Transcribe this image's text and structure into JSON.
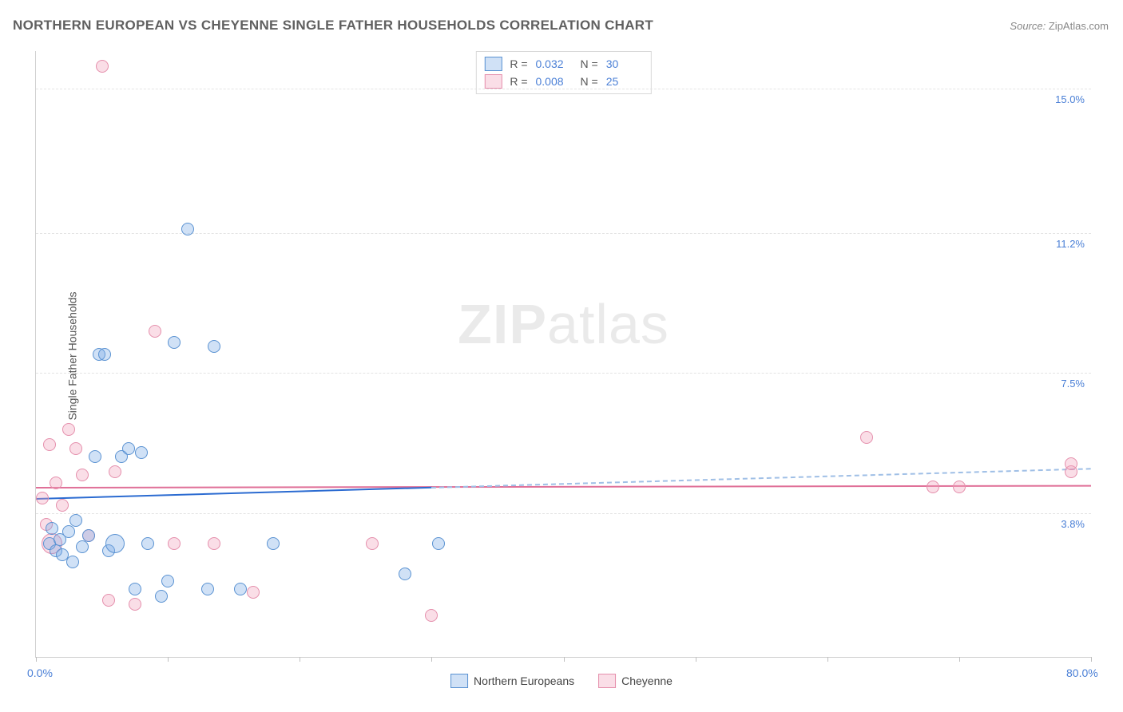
{
  "title": "NORTHERN EUROPEAN VS CHEYENNE SINGLE FATHER HOUSEHOLDS CORRELATION CHART",
  "source_label": "Source:",
  "source_value": "ZipAtlas.com",
  "ylabel": "Single Father Households",
  "watermark_zip": "ZIP",
  "watermark_atlas": "atlas",
  "chart": {
    "type": "scatter",
    "xlim": [
      0,
      80
    ],
    "ylim": [
      0,
      16
    ],
    "background_color": "#ffffff",
    "grid_color": "#e3e3e3",
    "axis_color": "#d0d0d0",
    "y_gridlines": [
      3.8,
      7.5,
      11.2,
      15.0
    ],
    "y_tick_positions": [
      3.8,
      7.5,
      11.2,
      15.0
    ],
    "y_tick_labels": [
      "3.8%",
      "7.5%",
      "11.2%",
      "15.0%"
    ],
    "y_tick_color": "#4a7fd6",
    "y_tick_fontsize": 13,
    "x_ticks": [
      0,
      10,
      20,
      30,
      40,
      50,
      60,
      70,
      80
    ],
    "x_min_label": "0.0%",
    "x_max_label": "80.0%",
    "x_label_color": "#4a7fd6",
    "x_label_fontsize": 14,
    "marker_radius": 8
  },
  "series": {
    "blue": {
      "name": "Northern Europeans",
      "fill": "rgba(120,170,230,0.35)",
      "stroke": "#5a92d2",
      "R": "0.032",
      "N": "30",
      "trend": {
        "y_start": 4.2,
        "y_end": 5.0,
        "solid_to_x": 30,
        "color_solid": "#2b6bd1",
        "color_dash": "#9fbfe6",
        "width": 2
      },
      "points": [
        {
          "x": 1.0,
          "y": 3.0
        },
        {
          "x": 1.5,
          "y": 2.8
        },
        {
          "x": 1.2,
          "y": 3.4
        },
        {
          "x": 1.8,
          "y": 3.1
        },
        {
          "x": 2.0,
          "y": 2.7
        },
        {
          "x": 2.5,
          "y": 3.3
        },
        {
          "x": 2.8,
          "y": 2.5
        },
        {
          "x": 3.0,
          "y": 3.6
        },
        {
          "x": 3.5,
          "y": 2.9
        },
        {
          "x": 4.0,
          "y": 3.2
        },
        {
          "x": 4.5,
          "y": 5.3
        },
        {
          "x": 4.8,
          "y": 8.0
        },
        {
          "x": 5.2,
          "y": 8.0
        },
        {
          "x": 5.5,
          "y": 2.8
        },
        {
          "x": 6.0,
          "y": 3.0,
          "r": 12
        },
        {
          "x": 6.5,
          "y": 5.3
        },
        {
          "x": 7.0,
          "y": 5.5
        },
        {
          "x": 7.5,
          "y": 1.8
        },
        {
          "x": 8.0,
          "y": 5.4
        },
        {
          "x": 8.5,
          "y": 3.0
        },
        {
          "x": 9.5,
          "y": 1.6
        },
        {
          "x": 10.0,
          "y": 2.0
        },
        {
          "x": 10.5,
          "y": 8.3
        },
        {
          "x": 11.5,
          "y": 11.3
        },
        {
          "x": 13.0,
          "y": 1.8
        },
        {
          "x": 13.5,
          "y": 8.2
        },
        {
          "x": 15.5,
          "y": 1.8
        },
        {
          "x": 18.0,
          "y": 3.0
        },
        {
          "x": 28.0,
          "y": 2.2
        },
        {
          "x": 30.5,
          "y": 3.0
        }
      ]
    },
    "pink": {
      "name": "Cheyenne",
      "fill": "rgba(240,160,185,0.35)",
      "stroke": "#e58fac",
      "R": "0.008",
      "N": "25",
      "trend": {
        "y_start": 4.5,
        "y_end": 4.55,
        "solid_to_x": 80,
        "color_solid": "#e07098",
        "color_dash": "#e07098",
        "width": 2
      },
      "points": [
        {
          "x": 0.5,
          "y": 4.2
        },
        {
          "x": 0.8,
          "y": 3.5
        },
        {
          "x": 1.0,
          "y": 5.6
        },
        {
          "x": 1.2,
          "y": 3.0,
          "r": 13
        },
        {
          "x": 1.5,
          "y": 4.6
        },
        {
          "x": 2.0,
          "y": 4.0
        },
        {
          "x": 2.5,
          "y": 6.0
        },
        {
          "x": 3.0,
          "y": 5.5
        },
        {
          "x": 3.5,
          "y": 4.8
        },
        {
          "x": 4.0,
          "y": 3.2
        },
        {
          "x": 5.0,
          "y": 15.6
        },
        {
          "x": 5.5,
          "y": 1.5
        },
        {
          "x": 6.0,
          "y": 4.9
        },
        {
          "x": 7.5,
          "y": 1.4
        },
        {
          "x": 9.0,
          "y": 8.6
        },
        {
          "x": 10.5,
          "y": 3.0
        },
        {
          "x": 13.5,
          "y": 3.0
        },
        {
          "x": 16.5,
          "y": 1.7
        },
        {
          "x": 25.5,
          "y": 3.0
        },
        {
          "x": 30.0,
          "y": 1.1
        },
        {
          "x": 63.0,
          "y": 5.8
        },
        {
          "x": 68.0,
          "y": 4.5
        },
        {
          "x": 70.0,
          "y": 4.5
        },
        {
          "x": 78.5,
          "y": 4.9
        },
        {
          "x": 78.5,
          "y": 5.1
        }
      ]
    }
  },
  "stat_legend": {
    "r_label": "R =",
    "n_label": "N =",
    "value_color": "#4a7fd6"
  }
}
